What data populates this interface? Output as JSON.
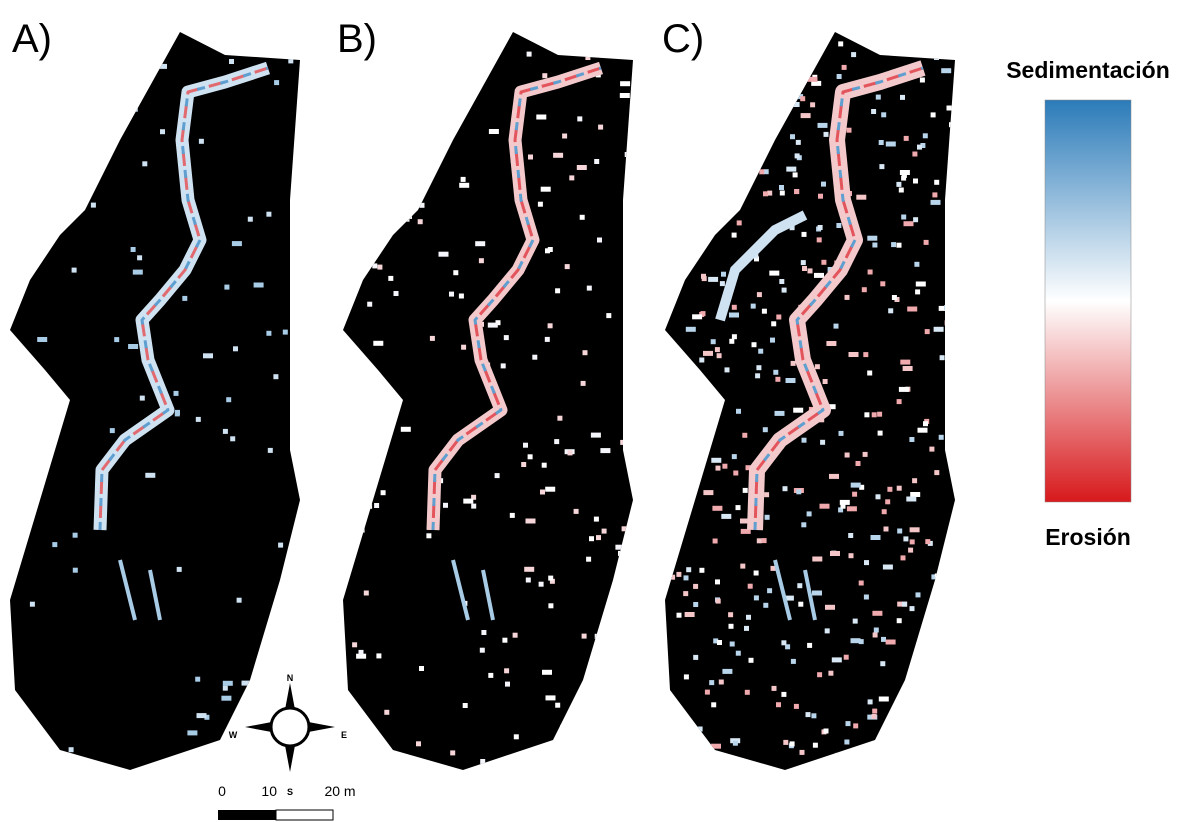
{
  "panels": [
    {
      "label": "A)"
    },
    {
      "label": "B)"
    },
    {
      "label": "C)"
    }
  ],
  "legend": {
    "top_label": "Sedimentación",
    "bottom_label": "Erosión"
  },
  "compass": {
    "north": "N",
    "south": "S",
    "east": "E",
    "west": "W"
  },
  "scale_bar": {
    "labels": [
      "0",
      "10",
      "20 m"
    ]
  }
}
